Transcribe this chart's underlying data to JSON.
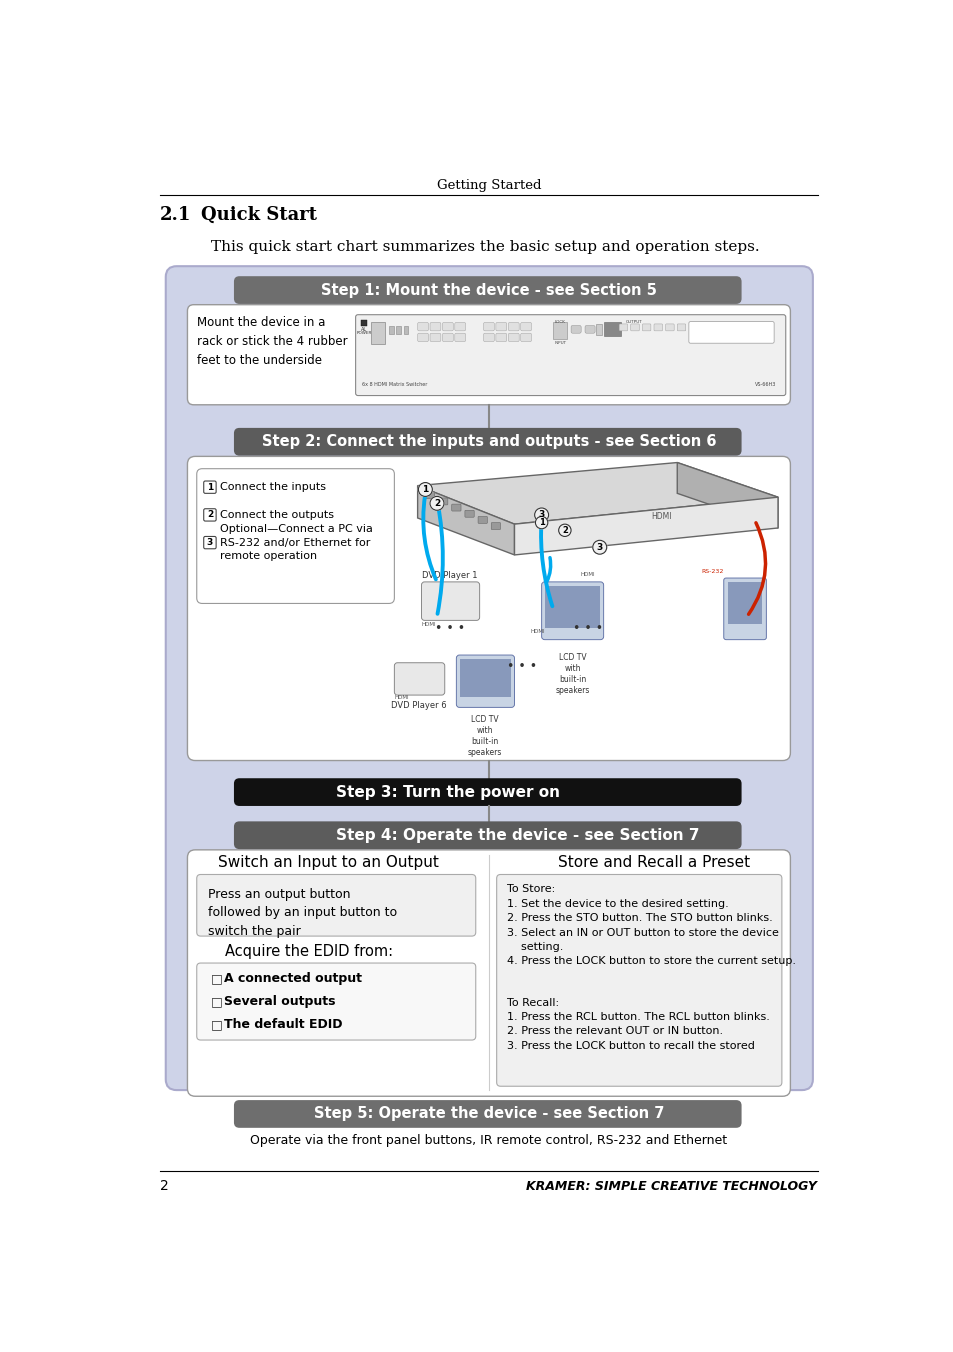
{
  "page_title": "Getting Started",
  "section_number": "2.1",
  "section_title": "Quick Start",
  "intro_text": "This quick start chart summarizes the basic setup and operation steps.",
  "footer_page": "2",
  "footer_brand": "KRAMER: SIMPLE CREATIVE TECHNOLOGY",
  "outer_bg": "#ced3e8",
  "outer_border": "#aaaacc",
  "step1_header": "Step 1: Mount the device - see Section 5",
  "step1_header_bg": "#6e6e6e",
  "step1_text": "Mount the device in a\nrack or stick the 4 rubber\nfeet to the underside",
  "step2_header": "Step 2: Connect the inputs and outputs - see Section 6",
  "step2_header_bg": "#5c5c5c",
  "step2_items": [
    "Connect the inputs",
    "Connect the outputs",
    "Optional—Connect a PC via\nRS-232 and/or Ethernet for\nremote operation"
  ],
  "step3_header": "Step 3: Turn the power on",
  "step3_header_bg": "#111111",
  "step4_header": "Step 4: Operate the device - see Section 7",
  "step4_header_bg": "#5c5c5c",
  "switch_title": "Switch an Input to an Output",
  "switch_text": "Press an output button\nfollowed by an input button to\nswitch the pair",
  "edid_title": "Acquire the EDID from:",
  "edid_items": [
    "A connected output",
    "Several outputs",
    "The default EDID"
  ],
  "store_title": "Store and Recall a Preset",
  "store_text_store": "To Store:\n1. Set the device to the desired setting.\n2. Press the STO button. The STO button blinks.\n3. Select an IN or OUT button to store the device\n    setting.\n4. Press the LOCK button to store the current setup.",
  "store_text_recall": "To Recall:\n1. Press the RCL button. The RCL button blinks.\n2. Press the relevant OUT or IN button.\n3. Press the LOCK button to recall the stored",
  "step5_header": "Step 5: Operate the device - see Section 7",
  "step5_header_bg": "#6e6e6e",
  "step5_text": "Operate via the front panel buttons, IR remote control, RS-232 and Ethernet",
  "white": "#ffffff",
  "black": "#000000",
  "inner_box_bg": "#ffffff",
  "inner_box_border": "#888888",
  "content_bg": "#f2f2f2",
  "blue_cable": "#00aaee",
  "red_cable": "#cc2200"
}
